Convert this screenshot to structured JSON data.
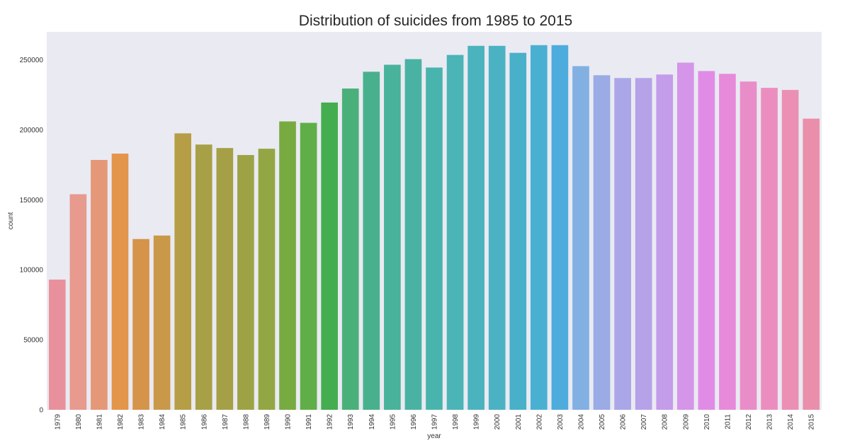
{
  "chart_data": {
    "type": "bar",
    "title": "Distribution of suicides from 1985 to 2015",
    "xlabel": "year",
    "ylabel": "count",
    "ylim": [
      0,
      270000
    ],
    "yticks": [
      0,
      50000,
      100000,
      150000,
      200000,
      250000
    ],
    "ytick_labels": [
      "0",
      "50000",
      "100000",
      "150000",
      "200000",
      "250000"
    ],
    "grid": "off",
    "background": "#eaeaf2",
    "categories": [
      "1979",
      "1980",
      "1981",
      "1982",
      "1983",
      "1984",
      "1985",
      "1986",
      "1987",
      "1988",
      "1989",
      "1990",
      "1991",
      "1992",
      "1993",
      "1994",
      "1995",
      "1996",
      "1997",
      "1998",
      "1999",
      "2000",
      "2001",
      "2002",
      "2003",
      "2004",
      "2005",
      "2006",
      "2007",
      "2008",
      "2009",
      "2010",
      "2011",
      "2012",
      "2013",
      "2014",
      "2015"
    ],
    "values": [
      93000,
      154000,
      178500,
      183000,
      122000,
      124500,
      197500,
      189500,
      187000,
      182000,
      186500,
      206000,
      205000,
      219500,
      229500,
      241500,
      246500,
      250500,
      244500,
      253500,
      260000,
      260000,
      255000,
      260500,
      260500,
      245500,
      239000,
      237000,
      237000,
      239500,
      248000,
      242000,
      240000,
      234500,
      230000,
      228500,
      208000
    ],
    "colors": [
      "#e8919d",
      "#e79a8d",
      "#e49878",
      "#e3954b",
      "#d59449",
      "#c99949",
      "#b69e47",
      "#a8a047",
      "#a5a046",
      "#9da344",
      "#93a644",
      "#78aa42",
      "#60ae48",
      "#44ad4f",
      "#4ab07a",
      "#49b08d",
      "#49b29b",
      "#49b2a3",
      "#48b4ad",
      "#4ab4b6",
      "#4ab3bd",
      "#4ab2c3",
      "#48b0c9",
      "#4ab0d2",
      "#4eacdd",
      "#82b0e2",
      "#9aabe5",
      "#aaa6e7",
      "#b5a2e8",
      "#c39cea",
      "#d595e8",
      "#e08ce6",
      "#e78ad9",
      "#e98dc9",
      "#eb8ebf",
      "#eb8fb5",
      "#ea8fab"
    ]
  }
}
